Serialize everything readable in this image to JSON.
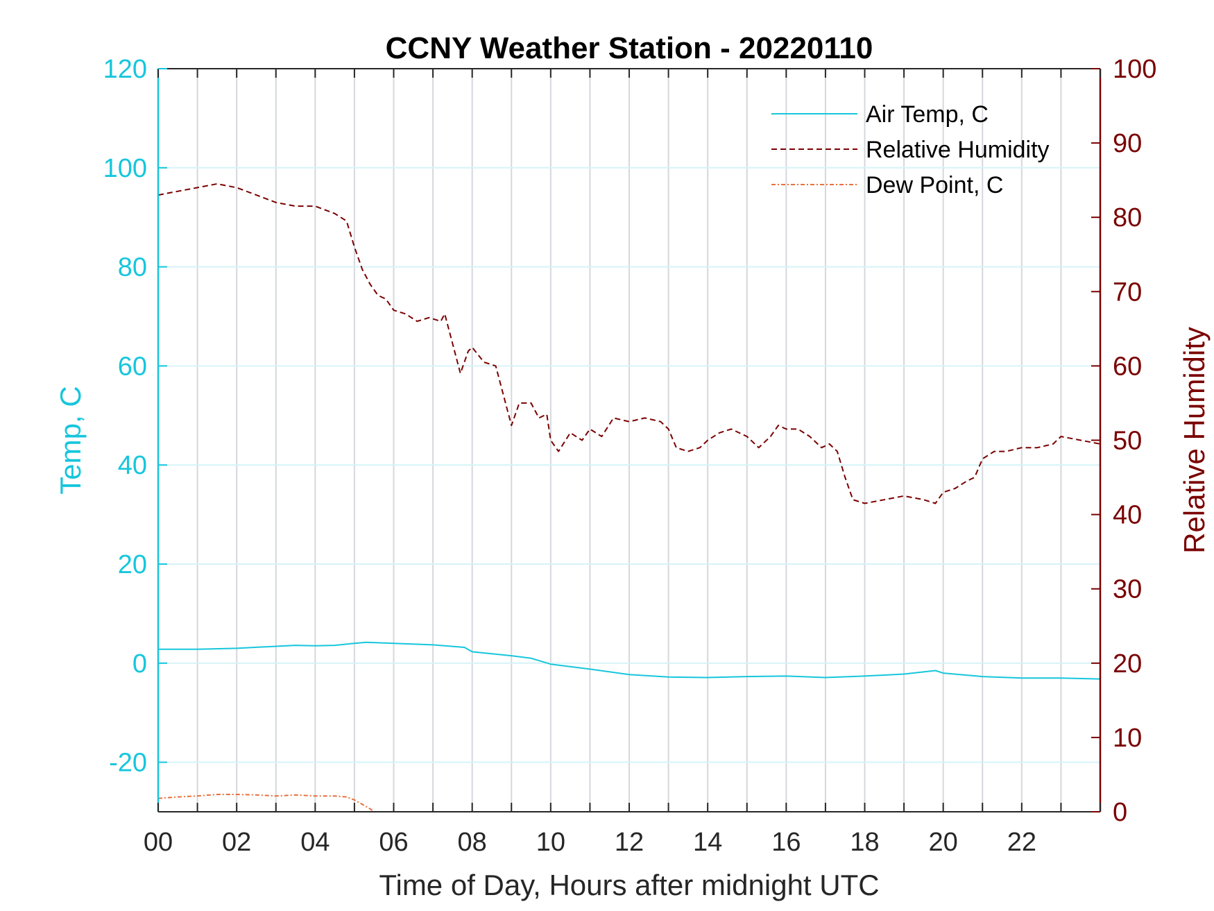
{
  "chart_data": {
    "type": "line",
    "title": "CCNY Weather Station - 20220110",
    "xlabel": "Time of Day, Hours after midnight UTC",
    "ylabel_left": "Temp, C",
    "ylabel_right": "Relative Humidity",
    "xlim": [
      0,
      24
    ],
    "ylim_left": [
      -30,
      120
    ],
    "ylim_right": [
      0,
      100
    ],
    "x_ticks": [
      0,
      2,
      4,
      6,
      8,
      10,
      12,
      14,
      16,
      18,
      20,
      22
    ],
    "x_tick_labels": [
      "00",
      "02",
      "04",
      "06",
      "08",
      "10",
      "12",
      "14",
      "16",
      "18",
      "20",
      "22"
    ],
    "y_left_ticks": [
      -20,
      0,
      20,
      40,
      60,
      80,
      100,
      120
    ],
    "y_right_ticks": [
      0,
      10,
      20,
      30,
      40,
      50,
      60,
      70,
      80,
      90,
      100
    ],
    "x_grid": true,
    "y_grid_left": true,
    "legend_position": "top-right",
    "colors": {
      "air_temp": "#16c6dc",
      "humidity": "#7a0000",
      "dew_point": "#e8703c",
      "left_axis": "#16c6dc",
      "right_axis": "#7a0000",
      "grid_x": "#d4d8dc",
      "grid_y": "#d6f3f8"
    },
    "series": [
      {
        "name": "Air Temp, C",
        "axis": "left",
        "style": "solid",
        "x": [
          0,
          1,
          2,
          3,
          3.5,
          4,
          4.5,
          5,
          5.3,
          6,
          7,
          7.8,
          8,
          9,
          9.5,
          10,
          11,
          12,
          13,
          14,
          15,
          16,
          17,
          18,
          19,
          19.8,
          20,
          21,
          22,
          23,
          24
        ],
        "values": [
          2.8,
          2.8,
          3.0,
          3.4,
          3.6,
          3.5,
          3.6,
          4.0,
          4.2,
          4.0,
          3.7,
          3.2,
          2.3,
          1.5,
          1.0,
          -0.2,
          -1.2,
          -2.3,
          -2.8,
          -2.9,
          -2.7,
          -2.6,
          -2.9,
          -2.6,
          -2.2,
          -1.5,
          -2.0,
          -2.7,
          -3.0,
          -3.0,
          -3.2
        ]
      },
      {
        "name": "Relative Humidity",
        "axis": "right",
        "style": "dashed",
        "x": [
          0,
          0.5,
          1.0,
          1.5,
          2.0,
          2.5,
          3.0,
          3.5,
          4.0,
          4.5,
          4.8,
          5.0,
          5.2,
          5.4,
          5.6,
          5.8,
          6.0,
          6.3,
          6.6,
          6.9,
          7.2,
          7.3,
          7.5,
          7.7,
          7.9,
          8.0,
          8.3,
          8.6,
          8.9,
          9.0,
          9.2,
          9.5,
          9.7,
          9.9,
          10.0,
          10.2,
          10.5,
          10.8,
          11.0,
          11.3,
          11.6,
          12.0,
          12.4,
          12.8,
          13.0,
          13.2,
          13.5,
          13.8,
          14.0,
          14.3,
          14.6,
          15.0,
          15.3,
          15.6,
          15.8,
          16.0,
          16.3,
          16.6,
          16.9,
          17.1,
          17.3,
          17.5,
          17.7,
          18.0,
          18.5,
          19.0,
          19.5,
          19.8,
          20.0,
          20.3,
          20.6,
          20.8,
          21.0,
          21.3,
          21.6,
          22.0,
          22.4,
          22.8,
          23.0,
          23.5,
          24.0
        ],
        "values": [
          83,
          83.5,
          84,
          84.5,
          84,
          83,
          82,
          81.5,
          81.5,
          80.5,
          79.5,
          76,
          73,
          71,
          69.5,
          69,
          67.5,
          67,
          66,
          66.5,
          66,
          67,
          63,
          59,
          62,
          62.5,
          60.5,
          60,
          54,
          52,
          55,
          55,
          53,
          53.5,
          50,
          48.5,
          51,
          50,
          51.5,
          50.5,
          53,
          52.5,
          53,
          52.5,
          51.5,
          49,
          48.5,
          49,
          50,
          51,
          51.5,
          50.5,
          49,
          50.5,
          52,
          51.5,
          51.5,
          50.5,
          49,
          49.5,
          48.5,
          45,
          42,
          41.5,
          42,
          42.5,
          42,
          41.5,
          43,
          43.5,
          44.5,
          45,
          47.5,
          48.5,
          48.5,
          49,
          49,
          49.5,
          50.5,
          50,
          49.5
        ]
      },
      {
        "name": "Dew Point, C",
        "axis": "left",
        "style": "dash-dot",
        "x": [
          0,
          0.5,
          1.0,
          1.5,
          2.0,
          2.5,
          3.0,
          3.5,
          4.0,
          4.5,
          4.8,
          5.0,
          5.2,
          5.4,
          5.5
        ],
        "values": [
          -27.3,
          -27.0,
          -26.8,
          -26.5,
          -26.5,
          -26.6,
          -26.8,
          -26.6,
          -26.8,
          -26.8,
          -27.0,
          -27.6,
          -28.5,
          -29.4,
          -30.0
        ]
      }
    ]
  }
}
